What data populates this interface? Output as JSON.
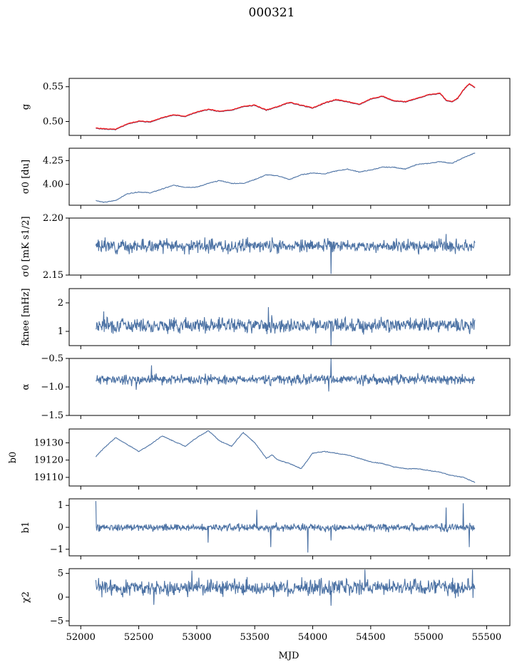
{
  "figure": {
    "title": "000321",
    "xlabel": "MJD"
  },
  "chart_data": {
    "type": "line",
    "title": "000321",
    "xlabel": "MJD",
    "xlim": [
      51900,
      55700
    ],
    "xticks": [
      52000,
      52500,
      53000,
      53500,
      54000,
      54500,
      55000,
      55500
    ],
    "x_data_range": [
      52130,
      55400
    ],
    "colors": {
      "series": "#4c72a4",
      "overlay": "#ff0000"
    },
    "panels": [
      {
        "id": "g",
        "ylabel": "g",
        "ylim": [
          0.48,
          0.562
        ],
        "yticks": [
          0.5,
          0.55
        ],
        "ytick_labels": [
          "0.50",
          "0.55"
        ],
        "overlay": true,
        "series": [
          {
            "name": "",
            "x": [
              52130,
              52200,
              52300,
              52400,
              52500,
              52600,
              52700,
              52800,
              52900,
              53000,
              53100,
              53200,
              53300,
              53400,
              53500,
              53600,
              53700,
              53800,
              53900,
              54000,
              54100,
              54200,
              54300,
              54400,
              54500,
              54600,
              54700,
              54800,
              54900,
              55000,
              55100,
              55150,
              55200,
              55250,
              55300,
              55350,
              55400
            ],
            "y": [
              0.49,
              0.489,
              0.488,
              0.496,
              0.5,
              0.499,
              0.505,
              0.509,
              0.507,
              0.513,
              0.517,
              0.514,
              0.516,
              0.521,
              0.523,
              0.516,
              0.521,
              0.527,
              0.523,
              0.519,
              0.526,
              0.531,
              0.528,
              0.524,
              0.532,
              0.536,
              0.529,
              0.528,
              0.533,
              0.538,
              0.54,
              0.53,
              0.528,
              0.533,
              0.545,
              0.554,
              0.548
            ]
          }
        ]
      },
      {
        "id": "sigma0",
        "ylabel": "σ0 [du]",
        "ylim": [
          3.78,
          4.38
        ],
        "yticks": [
          4.0,
          4.25
        ],
        "ytick_labels": [
          "4.00",
          "4.25"
        ],
        "series": [
          {
            "name": "",
            "x": [
              52130,
              52200,
              52300,
              52400,
              52500,
              52600,
              52700,
              52800,
              52900,
              53000,
              53100,
              53200,
              53300,
              53400,
              53500,
              53600,
              53700,
              53800,
              53900,
              54000,
              54100,
              54200,
              54300,
              54400,
              54500,
              54600,
              54700,
              54800,
              54900,
              55000,
              55100,
              55200,
              55300,
              55400
            ],
            "y": [
              3.83,
              3.81,
              3.83,
              3.9,
              3.92,
              3.91,
              3.95,
              3.99,
              3.97,
              3.97,
              4.01,
              4.04,
              4.01,
              4.01,
              4.05,
              4.1,
              4.09,
              4.05,
              4.1,
              4.12,
              4.11,
              4.14,
              4.16,
              4.13,
              4.15,
              4.18,
              4.18,
              4.16,
              4.21,
              4.22,
              4.24,
              4.22,
              4.28,
              4.33
            ]
          }
        ]
      },
      {
        "id": "sigma0_mks",
        "ylabel": "σ0 [mK s1/2]",
        "ylim": [
          2.15,
          2.2
        ],
        "yticks": [
          2.15,
          2.2
        ],
        "ytick_labels": [
          "2.15",
          "2.20"
        ],
        "series": [
          {
            "name": "",
            "mean": 2.1755,
            "amp": 0.004,
            "spikes": [
              [
                54160,
                2.151
              ],
              [
                53650,
                2.183
              ],
              [
                55150,
                2.186
              ]
            ],
            "seed": 3
          }
        ]
      },
      {
        "id": "fknee",
        "ylabel": "fknee [mHz]",
        "ylim": [
          0.5,
          2.5
        ],
        "yticks": [
          1,
          2
        ],
        "ytick_labels": [
          "1",
          "2"
        ],
        "series": [
          {
            "name": "",
            "mean": 1.22,
            "amp": 0.18,
            "spikes": [
              [
                54160,
                0.5
              ],
              [
                53620,
                1.85
              ],
              [
                52200,
                1.7
              ]
            ],
            "seed": 7
          }
        ]
      },
      {
        "id": "alpha",
        "ylabel": "α",
        "ylim": [
          -1.5,
          -0.5
        ],
        "yticks": [
          -1.5,
          -1.0,
          -0.5
        ],
        "ytick_labels": [
          "−1.5",
          "−1.0",
          "−0.5"
        ],
        "series": [
          {
            "name": "",
            "mean": -0.87,
            "amp": 0.06,
            "spikes": [
              [
                54160,
                -0.5
              ],
              [
                52610,
                -0.62
              ],
              [
                54140,
                -1.08
              ],
              [
                52480,
                -1.05
              ]
            ],
            "seed": 11
          }
        ]
      },
      {
        "id": "b0",
        "ylabel": "b0",
        "ylim": [
          19105,
          19138
        ],
        "yticks": [
          19110,
          19120,
          19130
        ],
        "ytick_labels": [
          "19110",
          "19120",
          "19130"
        ],
        "series": [
          {
            "name": "",
            "x": [
              52130,
              52200,
              52300,
              52400,
              52500,
              52600,
              52700,
              52800,
              52900,
              53000,
              53100,
              53200,
              53300,
              53400,
              53500,
              53600,
              53650,
              53700,
              53800,
              53900,
              54000,
              54100,
              54200,
              54300,
              54400,
              54500,
              54600,
              54700,
              54800,
              54900,
              55000,
              55100,
              55200,
              55300,
              55400
            ],
            "y": [
              19122,
              19127,
              19133,
              19129,
              19125,
              19129,
              19134,
              19131,
              19128,
              19133,
              19137,
              19131,
              19128,
              19136,
              19130,
              19121,
              19123,
              19120,
              19118,
              19115,
              19124,
              19125,
              19124,
              19123,
              19121,
              19119,
              19118,
              19116,
              19115,
              19115,
              19114,
              19113,
              19111,
              19110,
              19107
            ]
          }
        ]
      },
      {
        "id": "b1",
        "ylabel": "b1",
        "ylim": [
          -1.3,
          1.3
        ],
        "yticks": [
          -1,
          0,
          1
        ],
        "ytick_labels": [
          "−1",
          "0",
          "1"
        ],
        "series": [
          {
            "name": "",
            "mean": 0.0,
            "amp": 0.12,
            "spikes": [
              [
                52130,
                1.2
              ],
              [
                53960,
                -1.15
              ],
              [
                53640,
                -0.9
              ],
              [
                54160,
                -0.6
              ],
              [
                55300,
                1.1
              ],
              [
                55350,
                -0.9
              ],
              [
                53520,
                0.8
              ],
              [
                53100,
                -0.7
              ],
              [
                55150,
                0.9
              ]
            ],
            "seed": 19
          }
        ]
      },
      {
        "id": "chi2",
        "ylabel": "χ2",
        "ylim": [
          -6,
          6
        ],
        "yticks": [
          -5,
          0,
          5
        ],
        "ytick_labels": [
          "−5",
          "0",
          "5"
        ],
        "series": [
          {
            "name": "",
            "mean": 2.0,
            "amp": 1.2,
            "spikes": [
              [
                54160,
                -1.8
              ],
              [
                52630,
                -1.6
              ],
              [
                54450,
                5.8
              ],
              [
                52960,
                5.6
              ],
              [
                55380,
                5.8
              ]
            ],
            "seed": 23
          }
        ]
      }
    ]
  }
}
